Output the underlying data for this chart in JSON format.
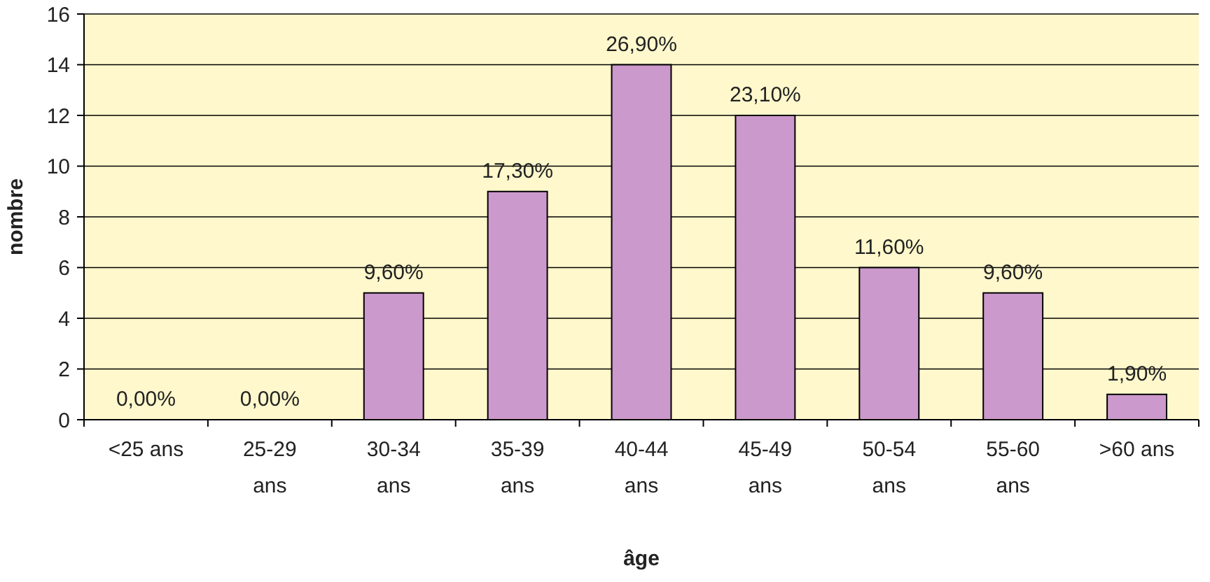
{
  "chart_data": {
    "type": "bar",
    "xlabel": "âge",
    "ylabel": "nombre",
    "categories": [
      "<25 ans",
      "25-29 ans",
      "30-34 ans",
      "35-39 ans",
      "40-44 ans",
      "45-49 ans",
      "50-54 ans",
      "55-60 ans",
      ">60 ans"
    ],
    "values": [
      0,
      0,
      5,
      9,
      14,
      12,
      6,
      5,
      1
    ],
    "annotations": [
      {
        "text": "0,00%",
        "x": "<25 ans",
        "y": 0
      },
      {
        "text": "0,00%",
        "x": "25-29 ans",
        "y": 0
      },
      {
        "text": "9,60%",
        "x": "30-34 ans",
        "y": 5
      },
      {
        "text": "17,30%",
        "x": "35-39 ans",
        "y": 9
      },
      {
        "text": "26,90%",
        "x": "40-44 ans",
        "y": 14
      },
      {
        "text": "23,10%",
        "x": "45-49 ans",
        "y": 12
      },
      {
        "text": "11,60%",
        "x": "50-54 ans",
        "y": 6
      },
      {
        "text": "9,60%",
        "x": "55-60 ans",
        "y": 5
      },
      {
        "text": "1,90%",
        "x": ">60 ans",
        "y": 1
      }
    ],
    "color": "#cc99cc",
    "ylim": [
      0,
      16
    ],
    "yticks": [
      0,
      2,
      4,
      6,
      8,
      10,
      12,
      14,
      16
    ],
    "grid": "y"
  }
}
